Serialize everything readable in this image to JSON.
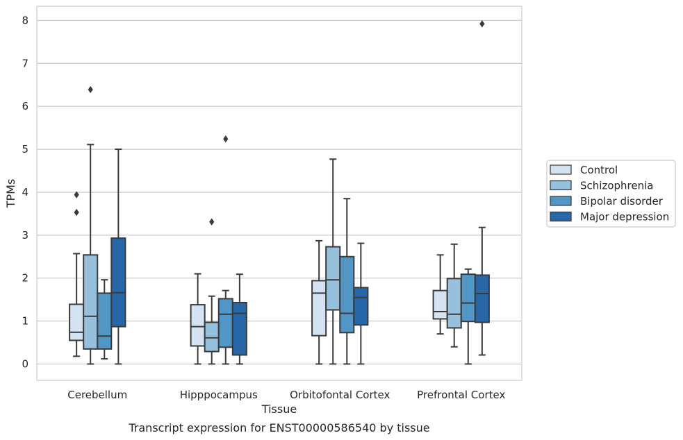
{
  "caption": "Transcript expression for ENST00000586540 by tissue",
  "chart_data": {
    "type": "box",
    "xlabel": "Tissue",
    "ylabel": "TPMs",
    "ylim": [
      -0.38,
      8.33
    ],
    "yticks": [
      0,
      1,
      2,
      3,
      4,
      5,
      6,
      7,
      8
    ],
    "grid": "horizontal",
    "legend_position": "right",
    "categories": [
      "Cerebellum",
      "Hipppocampus",
      "Orbitofontal Cortex",
      "Prefrontal Cortex"
    ],
    "series": [
      {
        "name": "Control",
        "color": "#d4e3f2",
        "boxes": [
          {
            "whislo": 0.18,
            "q1": 0.55,
            "med": 0.74,
            "q3": 1.39,
            "whishi": 2.57,
            "fliers": [
              3.53,
              3.94
            ]
          },
          {
            "whislo": 0.0,
            "q1": 0.42,
            "med": 0.87,
            "q3": 1.38,
            "whishi": 2.1,
            "fliers": []
          },
          {
            "whislo": 0.0,
            "q1": 0.66,
            "med": 1.65,
            "q3": 1.94,
            "whishi": 2.87,
            "fliers": []
          },
          {
            "whislo": 0.7,
            "q1": 1.05,
            "med": 1.22,
            "q3": 1.71,
            "whishi": 2.54,
            "fliers": []
          }
        ]
      },
      {
        "name": "Schizophrenia",
        "color": "#97c0dc",
        "boxes": [
          {
            "whislo": 0.0,
            "q1": 0.35,
            "med": 1.11,
            "q3": 2.54,
            "whishi": 5.11,
            "fliers": [
              6.39
            ]
          },
          {
            "whislo": 0.0,
            "q1": 0.29,
            "med": 0.61,
            "q3": 0.97,
            "whishi": 1.58,
            "fliers": [
              3.31
            ]
          },
          {
            "whislo": 0.0,
            "q1": 1.26,
            "med": 1.96,
            "q3": 2.73,
            "whishi": 4.77,
            "fliers": []
          },
          {
            "whislo": 0.4,
            "q1": 0.84,
            "med": 1.16,
            "q3": 1.99,
            "whishi": 2.79,
            "fliers": []
          }
        ]
      },
      {
        "name": "Bipolar disorder",
        "color": "#5296c6",
        "boxes": [
          {
            "whislo": 0.12,
            "q1": 0.35,
            "med": 0.65,
            "q3": 1.65,
            "whishi": 1.96,
            "fliers": []
          },
          {
            "whislo": 0.0,
            "q1": 0.39,
            "med": 1.16,
            "q3": 1.52,
            "whishi": 1.71,
            "fliers": [
              5.24
            ]
          },
          {
            "whislo": 0.0,
            "q1": 0.73,
            "med": 1.18,
            "q3": 2.5,
            "whishi": 3.85,
            "fliers": []
          },
          {
            "whislo": 0.0,
            "q1": 0.99,
            "med": 1.42,
            "q3": 2.09,
            "whishi": 2.21,
            "fliers": []
          }
        ]
      },
      {
        "name": "Major depression",
        "color": "#2767a8",
        "boxes": [
          {
            "whislo": 0.0,
            "q1": 0.87,
            "med": 1.66,
            "q3": 2.93,
            "whishi": 5.0,
            "fliers": []
          },
          {
            "whislo": 0.0,
            "q1": 0.21,
            "med": 1.18,
            "q3": 1.43,
            "whishi": 2.09,
            "fliers": []
          },
          {
            "whislo": 0.0,
            "q1": 0.91,
            "med": 1.55,
            "q3": 1.78,
            "whishi": 2.81,
            "fliers": []
          },
          {
            "whislo": 0.21,
            "q1": 0.97,
            "med": 1.64,
            "q3": 2.07,
            "whishi": 3.18,
            "fliers": [
              7.92
            ]
          }
        ]
      }
    ]
  }
}
